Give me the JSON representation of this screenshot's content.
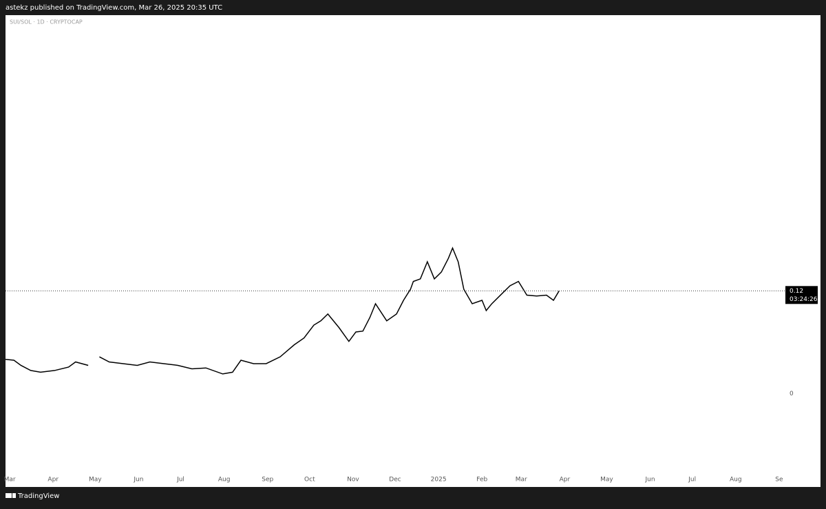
{
  "header": {
    "publisher": "astekz published on TradingView.com, Mar 26, 2025 20:35 UTC",
    "symbol": "SUI/SOL · 1D · CRYPTOCAP"
  },
  "footer": {
    "brand": "TradingView"
  },
  "chart_data": {
    "type": "line",
    "x": [
      -3,
      3,
      8,
      15,
      22,
      32,
      42,
      47,
      56,
      60,
      64,
      71,
      81,
      91,
      100,
      110,
      120,
      130,
      140,
      152,
      159,
      165,
      174,
      183,
      193,
      203,
      210,
      217,
      222,
      227,
      235,
      242,
      247,
      252,
      257,
      261,
      269,
      276,
      281,
      286,
      288,
      293,
      298,
      303,
      308,
      313,
      316,
      320,
      324,
      330,
      337,
      340,
      344,
      352,
      357,
      363,
      369,
      376,
      383,
      388,
      392
    ],
    "series": [
      {
        "name": "SUI/SOL",
        "color": "#000000",
        "values": [
          0.04,
          0.039,
          0.033,
          0.027,
          0.025,
          0.027,
          0.031,
          0.037,
          0.033,
          null,
          0.043,
          0.037,
          0.035,
          0.033,
          0.037,
          0.035,
          0.033,
          0.029,
          0.03,
          0.023,
          0.025,
          0.039,
          0.035,
          0.035,
          0.043,
          0.057,
          0.065,
          0.08,
          0.085,
          0.093,
          0.077,
          0.061,
          0.072,
          0.073,
          0.089,
          0.105,
          0.085,
          0.093,
          0.109,
          0.122,
          0.131,
          0.134,
          0.154,
          0.134,
          0.142,
          0.158,
          0.17,
          0.154,
          0.122,
          0.105,
          0.109,
          0.097,
          0.105,
          0.118,
          0.126,
          0.131,
          0.115,
          0.114,
          0.115,
          0.109,
          0.12
        ]
      }
    ],
    "last_price": 0.12,
    "countdown": "03:24:26",
    "xlim": [
      -3,
      552
    ],
    "ylim": [
      -0.109,
      0.442
    ],
    "yticks": [
      0
    ],
    "xticks": [
      {
        "value": 0,
        "label": "Mar"
      },
      {
        "value": 31,
        "label": "Apr"
      },
      {
        "value": 61,
        "label": "May"
      },
      {
        "value": 92,
        "label": "Jun"
      },
      {
        "value": 122,
        "label": "Jul"
      },
      {
        "value": 153,
        "label": "Aug"
      },
      {
        "value": 184,
        "label": "Sep"
      },
      {
        "value": 214,
        "label": "Oct"
      },
      {
        "value": 245,
        "label": "Nov"
      },
      {
        "value": 275,
        "label": "Dec"
      },
      {
        "value": 306,
        "label": "2025"
      },
      {
        "value": 337,
        "label": "Feb"
      },
      {
        "value": 365,
        "label": "Mar"
      },
      {
        "value": 396,
        "label": "Apr"
      },
      {
        "value": 426,
        "label": "May"
      },
      {
        "value": 457,
        "label": "Jun"
      },
      {
        "value": 487,
        "label": "Jul"
      },
      {
        "value": 518,
        "label": "Aug"
      },
      {
        "value": 549,
        "label": "Se"
      }
    ]
  }
}
